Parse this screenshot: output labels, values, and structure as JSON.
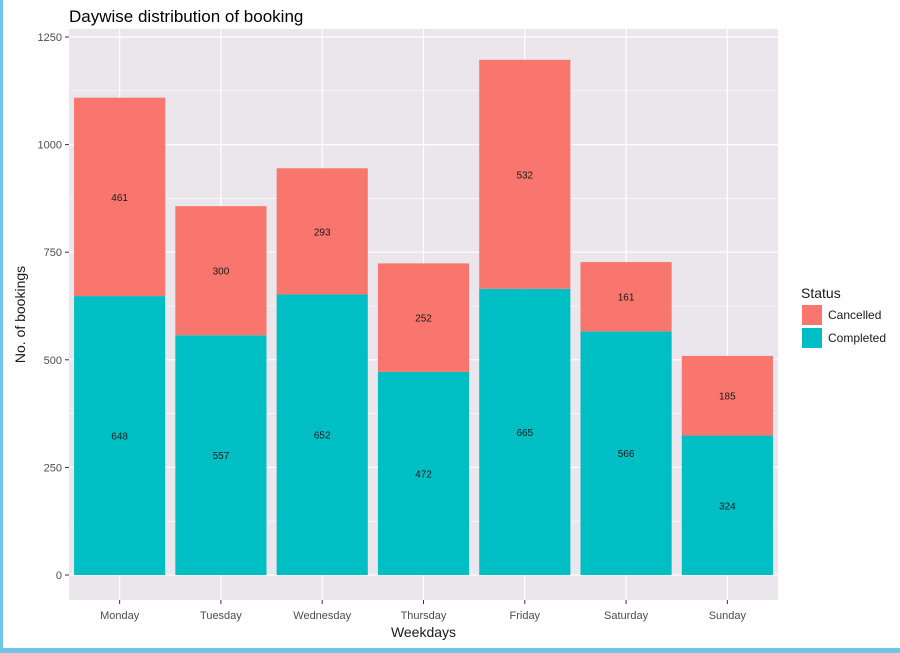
{
  "chart_data": {
    "type": "bar",
    "stacked": true,
    "title": "Daywise distribution of booking",
    "xlabel": "Weekdays",
    "ylabel": "No. of bookings",
    "ylim": [
      0,
      1250
    ],
    "yticks": [
      0,
      250,
      500,
      750,
      1000,
      1250
    ],
    "ytick_labels": [
      "0",
      "250",
      "500",
      "750",
      "1000",
      "1250"
    ],
    "categories": [
      "Monday",
      "Tuesday",
      "Wednesday",
      "Thursday",
      "Friday",
      "Saturday",
      "Sunday"
    ],
    "series": [
      {
        "name": "Completed",
        "color": "#00bfc4",
        "values": [
          648,
          557,
          652,
          472,
          665,
          566,
          324
        ]
      },
      {
        "name": "Cancelled",
        "color": "#f8766d",
        "values": [
          461,
          300,
          293,
          252,
          532,
          161,
          185
        ]
      }
    ],
    "value_labels": {
      "Completed": [
        "648",
        "557",
        "652",
        "472",
        "665",
        "566",
        "324"
      ],
      "Cancelled": [
        "461",
        "300",
        "293",
        "252",
        "532",
        "161",
        "185"
      ]
    },
    "legend": {
      "title": "Status",
      "position": "right",
      "entries": [
        {
          "label": "Cancelled",
          "color": "#f8766d"
        },
        {
          "label": "Completed",
          "color": "#00bfc4"
        }
      ]
    },
    "grid": true,
    "panel_color": "#ebe5ec",
    "grid_color": "#ffffff"
  }
}
